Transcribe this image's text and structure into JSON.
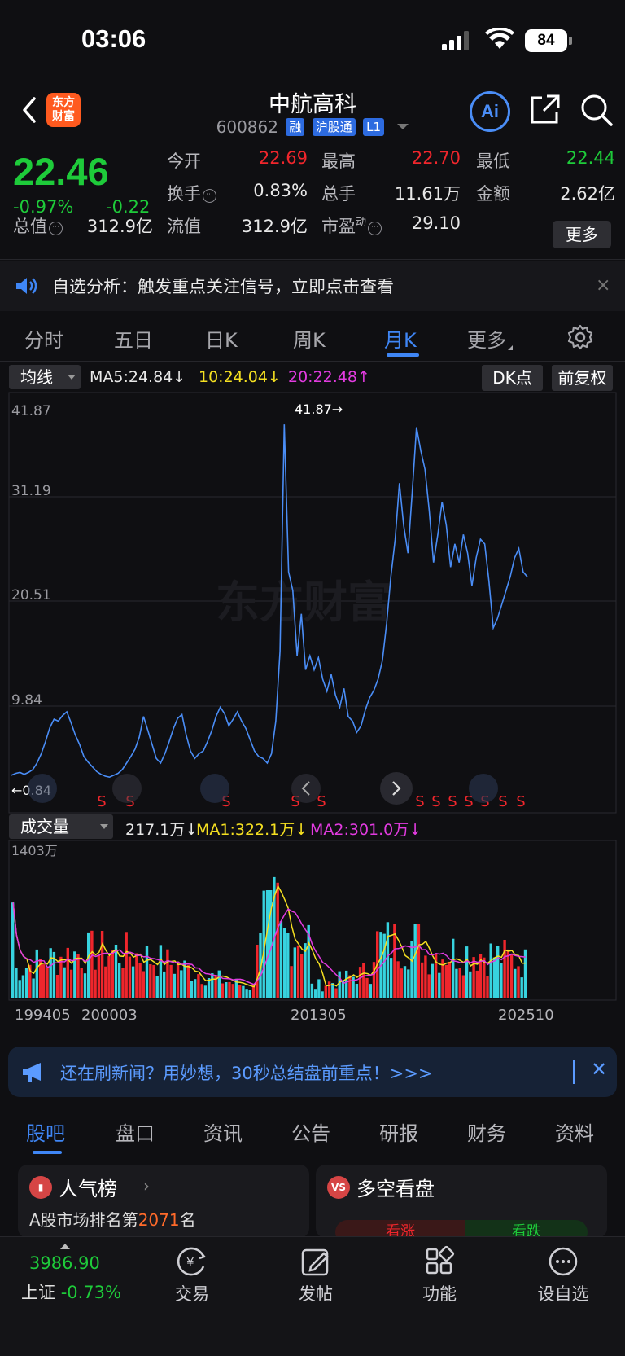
{
  "status": {
    "time": "03:06",
    "battery": "84"
  },
  "header": {
    "title": "中航高科",
    "code": "600862",
    "tags": [
      "融",
      "沪股通",
      "L1"
    ],
    "logo_line1": "东方",
    "logo_line2": "财富",
    "ai_label": "Ai"
  },
  "quote": {
    "price": "22.46",
    "pct": "-0.97%",
    "change": "-0.22",
    "fields": {
      "open_label": "今开",
      "open": "22.69",
      "high_label": "最高",
      "high": "22.70",
      "low_label": "最低",
      "low": "22.44",
      "turnover_label": "换手",
      "turnover": "0.83%",
      "volume_label": "总手",
      "volume": "11.61万",
      "amount_label": "金额",
      "amount": "2.62亿",
      "mktcap_label": "总值",
      "mktcap": "312.9亿",
      "float_label": "流值",
      "float": "312.9亿",
      "pe_label": "市盈",
      "pe_sup": "动",
      "pe": "29.10"
    },
    "more": "更多"
  },
  "notice": {
    "text": "自选分析：触发重点关注信号，立即点击查看",
    "close": "×"
  },
  "period_tabs": {
    "items": [
      "分时",
      "五日",
      "日K",
      "周K",
      "月K",
      "更多"
    ],
    "active": "月K"
  },
  "ma_bar": {
    "selector": "均线",
    "ma5": "MA5:24.84↓",
    "ma10": "10:24.04↓",
    "ma20": "20:22.48↑",
    "dk": "DK点",
    "adjust": "前复权"
  },
  "kline": {
    "y_labels": [
      "41.87",
      "31.19",
      "20.51",
      "9.84"
    ],
    "max_label": "41.87→",
    "min_label": "←0.84",
    "watermark": "东方财富",
    "s_marker": "S"
  },
  "volume_bar": {
    "selector": "成交量",
    "current": "217.1万↓",
    "ma1": "MA1:322.1万↓",
    "ma2": "MA2:301.0万↓",
    "max_label": "1403万"
  },
  "x_axis": [
    "199405",
    "200003",
    "201305",
    "202510"
  ],
  "promo": {
    "text": "还在刷新闻？用妙想，30秒总结盘前重点！>>>",
    "close": "✕"
  },
  "bottom_tabs": {
    "items": [
      "股吧",
      "盘口",
      "资讯",
      "公告",
      "研报",
      "财务",
      "资料"
    ],
    "active": "股吧"
  },
  "cards": {
    "left_title": "人气榜",
    "left_sub_prefix": "A股市场排名第",
    "left_rank": "2071",
    "left_sub_suffix": "名",
    "right_title": "多空看盘",
    "right_up": "看涨",
    "right_down": "看跌",
    "right_icon": "VS"
  },
  "bottom_nav": {
    "index_value": "3986.90",
    "index_name": "上证",
    "index_pct": "-0.73%",
    "items": [
      "交易",
      "发帖",
      "功能",
      "设自选"
    ]
  },
  "colors": {
    "up": "#f0262c",
    "down": "#1ecb3a",
    "accent": "#3f86f5",
    "line": "#4a8df6",
    "ma1": "#f5e021",
    "ma2": "#e23be0",
    "vol_down": "#37d3df"
  },
  "chart_data": {
    "type": "line",
    "title": "中航高科 月K",
    "ylim": [
      0.84,
      41.87
    ],
    "series": [
      {
        "values": [
          1.2,
          1.4,
          1.5,
          1.3,
          1.5,
          1.8,
          2.5,
          3.5,
          4.8,
          6.3,
          7.2,
          7.0,
          7.6,
          8.0,
          6.8,
          5.5,
          4.5,
          3.2,
          2.6,
          2.1,
          1.6,
          1.3,
          1.1,
          1.0,
          1.2,
          1.4,
          1.8,
          2.5,
          3.2,
          4.0,
          5.3,
          7.5,
          6.0,
          4.5,
          3.0,
          2.5,
          3.5,
          4.8,
          6.2,
          7.3,
          7.7,
          5.5,
          3.8,
          3.0,
          3.5,
          3.8,
          4.8,
          6.0,
          7.5,
          8.5,
          7.8,
          6.5,
          7.2,
          8.0,
          7.0,
          6.2,
          5.0,
          3.8,
          3.2,
          3.0,
          2.5,
          3.5,
          7.0,
          14.5,
          38.8,
          23.0,
          21.0,
          14.0,
          18.5,
          12.5,
          14.0,
          12.5,
          13.8,
          11.5,
          10.2,
          12.0,
          9.8,
          8.5,
          10.5,
          7.5,
          7.0,
          5.8,
          6.5,
          8.2,
          9.5,
          10.3,
          11.5,
          13.5,
          17.5,
          22.5,
          26.5,
          32.5,
          28.0,
          25.0,
          31.5,
          38.5,
          36.0,
          34.0,
          29.5,
          24.0,
          27.0,
          30.5,
          28.0,
          23.5,
          26.0,
          24.0,
          27.0,
          25.0,
          21.5,
          24.5,
          26.5,
          26.0,
          22.0,
          17.0,
          18.0,
          19.5,
          21.0,
          22.5,
          24.5,
          25.5,
          23.0,
          22.46
        ]
      }
    ],
    "volume": [
      {
        "name": "成交量",
        "max": 1403
      },
      {
        "name": "MA1"
      },
      {
        "name": "MA2"
      }
    ]
  }
}
